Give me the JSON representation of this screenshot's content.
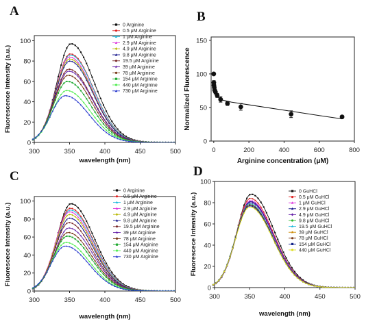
{
  "chart_data": [
    {
      "panel": "A",
      "type": "line",
      "xlabel": "wavelength (nm)",
      "ylabel": "Fluorescence Intensity (a.u.)",
      "xlim": [
        300,
        500
      ],
      "ylim": [
        0,
        105
      ],
      "xticks": [
        300,
        350,
        400,
        450,
        500
      ],
      "yticks": [
        0,
        20,
        40,
        60,
        80,
        100
      ],
      "x_start": 298,
      "x_end": 500,
      "x_step": 2,
      "legend_position": "top-right",
      "series": [
        {
          "name": "0        Arginine",
          "peak_x": 352,
          "peak": 97,
          "color": "#111111",
          "marker": "square"
        },
        {
          "name": "0.5 μM Arginine",
          "peak_x": 351,
          "peak": 87,
          "color": "#dd2222",
          "marker": "circle"
        },
        {
          "name": "1    μM Arginine",
          "peak_x": 351,
          "peak": 86,
          "color": "#22bbdd",
          "marker": "triangle"
        },
        {
          "name": "2.9  μM Arginine",
          "peak_x": 350,
          "peak": 84,
          "color": "#dd33dd",
          "marker": "triangle"
        },
        {
          "name": "4.9  μM Arginine",
          "peak_x": 350,
          "peak": 82,
          "color": "#b8b800",
          "marker": "diamond"
        },
        {
          "name": "9.8  μM Arginine",
          "peak_x": 350,
          "peak": 80,
          "color": "#111188",
          "marker": "triangle"
        },
        {
          "name": "19.5 μM Arginine",
          "peak_x": 349,
          "peak": 72,
          "color": "#7a2a2a",
          "marker": "circle"
        },
        {
          "name": "39   μM Arginine",
          "peak_x": 349,
          "peak": 70,
          "color": "#6622aa",
          "marker": "star"
        },
        {
          "name": "78   μM Arginine",
          "peak_x": 348,
          "peak": 66,
          "color": "#7a3a1a",
          "marker": "circle"
        },
        {
          "name": "154  μM Arginine",
          "peak_x": 347,
          "peak": 60,
          "color": "#22aa33",
          "marker": "square"
        },
        {
          "name": "440  μM Arginine",
          "peak_x": 346,
          "peak": 51,
          "color": "#55ee55",
          "marker": "circle"
        },
        {
          "name": "730  μM Arginine",
          "peak_x": 344,
          "peak": 46,
          "color": "#2233cc",
          "marker": "triangle"
        }
      ]
    },
    {
      "panel": "B",
      "type": "scatter",
      "xlabel": "Arginine concentration (μM)",
      "ylabel": "Normalized Fluorescence",
      "xlim": [
        -15,
        800
      ],
      "ylim": [
        0,
        155
      ],
      "xticks": [
        0,
        200,
        400,
        600,
        800
      ],
      "yticks": [
        0,
        50,
        100,
        150
      ],
      "points": [
        {
          "x": 0,
          "y": 100,
          "err": 0
        },
        {
          "x": 0.5,
          "y": 87,
          "err": 3
        },
        {
          "x": 1,
          "y": 83,
          "err": 3
        },
        {
          "x": 2.9,
          "y": 80,
          "err": 3
        },
        {
          "x": 4.9,
          "y": 76,
          "err": 3
        },
        {
          "x": 9.8,
          "y": 73,
          "err": 3
        },
        {
          "x": 19.5,
          "y": 68,
          "err": 3
        },
        {
          "x": 39,
          "y": 62,
          "err": 4
        },
        {
          "x": 78,
          "y": 56,
          "err": 3
        },
        {
          "x": 154,
          "y": 51,
          "err": 5
        },
        {
          "x": 440,
          "y": 40,
          "err": 5
        },
        {
          "x": 730,
          "y": 36,
          "err": 2
        }
      ],
      "fit": [
        {
          "x": 0,
          "y": 87
        },
        {
          "x": 4,
          "y": 76
        },
        {
          "x": 10,
          "y": 70
        },
        {
          "x": 25,
          "y": 65
        },
        {
          "x": 50,
          "y": 61
        },
        {
          "x": 100,
          "y": 58
        },
        {
          "x": 200,
          "y": 54
        },
        {
          "x": 400,
          "y": 46
        },
        {
          "x": 600,
          "y": 38
        },
        {
          "x": 730,
          "y": 33
        }
      ],
      "point_color": "#111111"
    },
    {
      "panel": "C",
      "type": "line",
      "xlabel": "wavelength (nm)",
      "ylabel": "Fluorescece Intensity (a.u.)",
      "xlim": [
        300,
        500
      ],
      "ylim": [
        0,
        105
      ],
      "xticks": [
        300,
        350,
        400,
        450,
        500
      ],
      "yticks": [
        0,
        20,
        40,
        60,
        80,
        100
      ],
      "x_start": 298,
      "x_end": 500,
      "x_step": 2,
      "legend_position": "top-right",
      "series": [
        {
          "name": "0        Arginine",
          "peak_x": 352,
          "peak": 97,
          "color": "#111111",
          "marker": "square"
        },
        {
          "name": "0.5 μM Arginine",
          "peak_x": 351,
          "peak": 92,
          "color": "#dd2222",
          "marker": "circle"
        },
        {
          "name": "1    μM Arginine",
          "peak_x": 351,
          "peak": 90,
          "color": "#22bbdd",
          "marker": "triangle"
        },
        {
          "name": "2.9  μM Arginine",
          "peak_x": 350,
          "peak": 88,
          "color": "#dd33dd",
          "marker": "triangle"
        },
        {
          "name": "4.9  μM Arginine",
          "peak_x": 350,
          "peak": 85,
          "color": "#b8b800",
          "marker": "diamond"
        },
        {
          "name": "9.8  μM Arginine",
          "peak_x": 350,
          "peak": 81,
          "color": "#111188",
          "marker": "triangle"
        },
        {
          "name": "19.5 μM Arginine",
          "peak_x": 349,
          "peak": 76,
          "color": "#7a2a2a",
          "marker": "circle"
        },
        {
          "name": "39   μM Arginine",
          "peak_x": 349,
          "peak": 70,
          "color": "#6622aa",
          "marker": "star"
        },
        {
          "name": "78   μM Arginine",
          "peak_x": 348,
          "peak": 65,
          "color": "#7a3a1a",
          "marker": "circle"
        },
        {
          "name": "154  μM Arginine",
          "peak_x": 347,
          "peak": 61,
          "color": "#22aa33",
          "marker": "square"
        },
        {
          "name": "440  μM Arginine",
          "peak_x": 345,
          "peak": 54,
          "color": "#55ee55",
          "marker": "circle"
        },
        {
          "name": "730  μM Arginine",
          "peak_x": 344,
          "peak": 50,
          "color": "#2233cc",
          "marker": "triangle"
        }
      ]
    },
    {
      "panel": "D",
      "type": "line",
      "xlabel": "wavelength (nm)",
      "ylabel": "Fluorescece Intensity (a.u.)",
      "xlim": [
        300,
        500
      ],
      "ylim": [
        0,
        100
      ],
      "xticks": [
        300,
        350,
        400,
        450,
        500
      ],
      "yticks": [
        0,
        20,
        40,
        60,
        80,
        100
      ],
      "x_start": 298,
      "x_end": 500,
      "x_step": 2,
      "legend_position": "top-right",
      "series": [
        {
          "name": "0          GuHCl",
          "peak_x": 352,
          "peak": 88,
          "color": "#111111",
          "marker": "square"
        },
        {
          "name": "0.5 μM GuHCl",
          "peak_x": 351,
          "peak": 84,
          "color": "#dd2222",
          "marker": "circle"
        },
        {
          "name": "1    μM  GuHCl",
          "peak_x": 351,
          "peak": 82,
          "color": "#dd33dd",
          "marker": "triangle"
        },
        {
          "name": "2.9  μM GuHCl",
          "peak_x": 351,
          "peak": 81,
          "color": "#111188",
          "marker": "triangle"
        },
        {
          "name": "4.9  μM GuHCl",
          "peak_x": 351,
          "peak": 80,
          "color": "#6622aa",
          "marker": "diamond"
        },
        {
          "name": "9.8  μM GuHCl",
          "peak_x": 350,
          "peak": 79,
          "color": "#33bb33",
          "marker": "circle"
        },
        {
          "name": "19.5 μM GuHCl",
          "peak_x": 350,
          "peak": 79,
          "color": "#22bbdd",
          "marker": "triangle"
        },
        {
          "name": "39   μM GuHCl",
          "peak_x": 350,
          "peak": 78,
          "color": "#cc8800",
          "marker": "star"
        },
        {
          "name": "78   μM GuHCl",
          "peak_x": 350,
          "peak": 78,
          "color": "#7a3a1a",
          "marker": "circle"
        },
        {
          "name": "154  μM GuHCl",
          "peak_x": 350,
          "peak": 77,
          "color": "#112288",
          "marker": "square"
        },
        {
          "name": "440  μM GuHCl",
          "peak_x": 350,
          "peak": 76,
          "color": "#dddd22",
          "marker": "circle"
        }
      ]
    }
  ]
}
